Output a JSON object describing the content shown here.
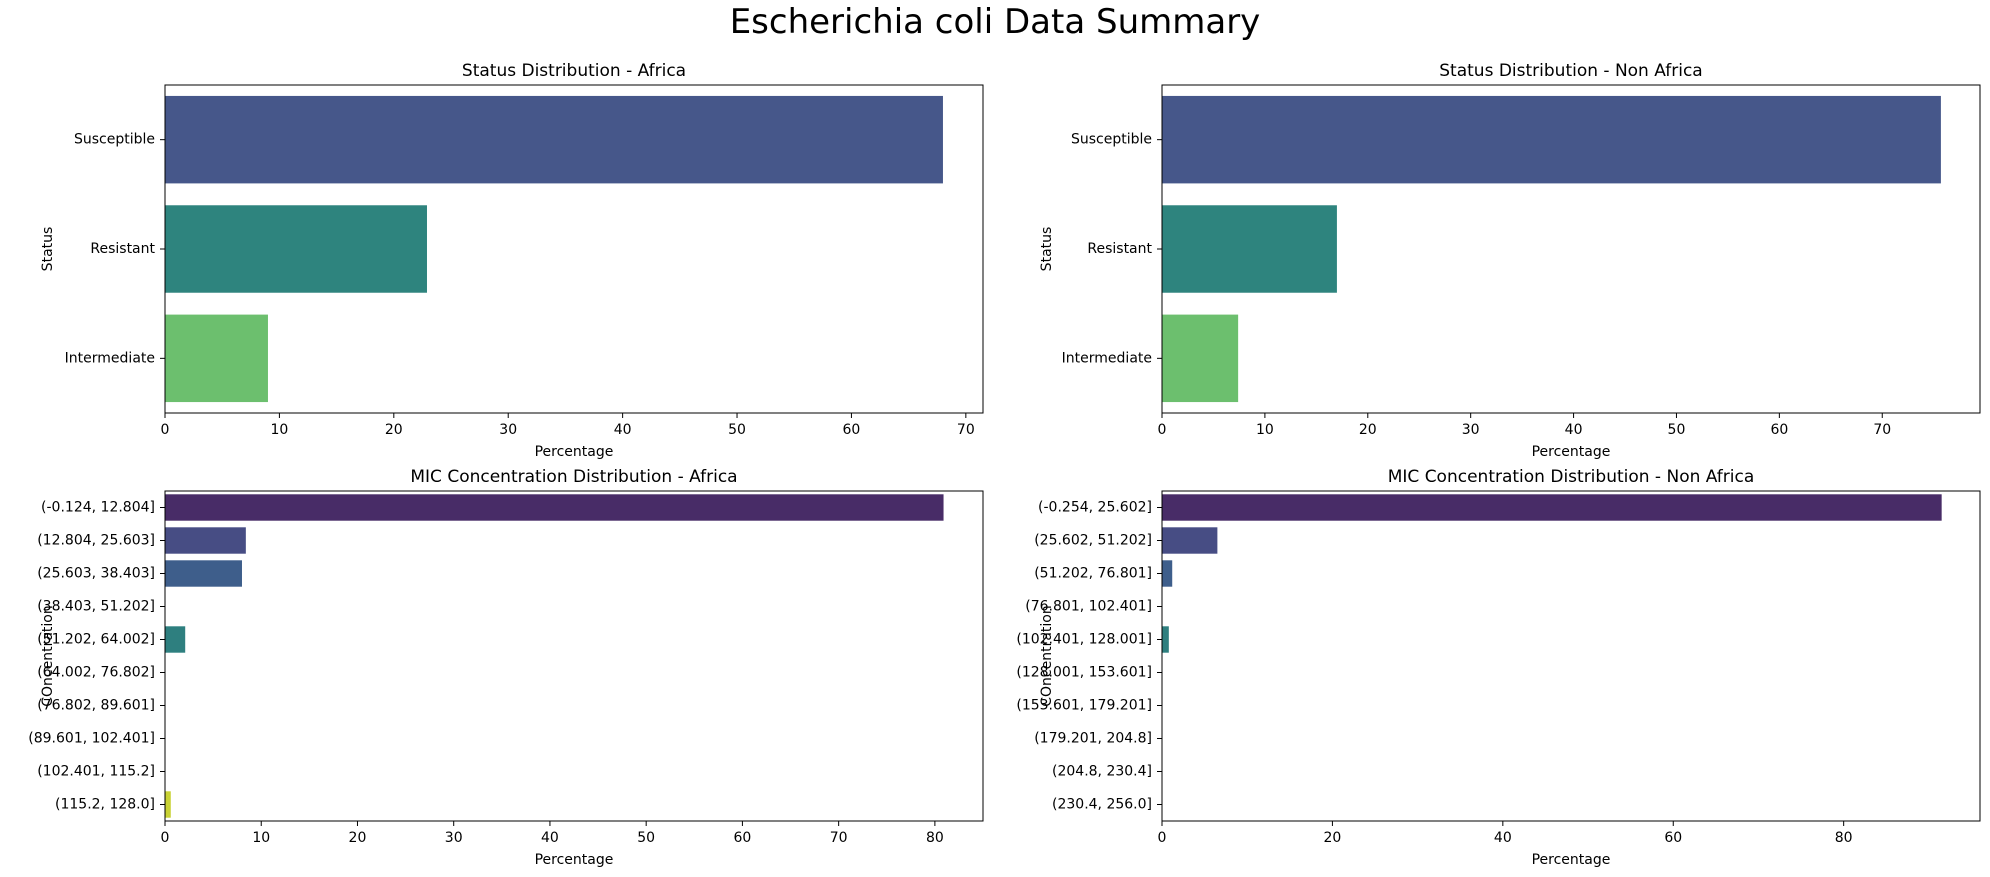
{
  "figure": {
    "suptitle": "Escherichia coli Data Summary"
  },
  "chart_data": [
    {
      "type": "bar",
      "orientation": "horizontal",
      "title": "Status Distribution - Africa",
      "xlabel": "Percentage",
      "ylabel": "Status",
      "categories": [
        "Susceptible",
        "Resistant",
        "Intermediate"
      ],
      "values": [
        68.0,
        22.9,
        9.0
      ],
      "colors": [
        "#46578a",
        "#2e847e",
        "#6cbf6e"
      ],
      "xlim": [
        0,
        71.5
      ],
      "xticks": [
        0,
        10,
        20,
        30,
        40,
        50,
        60,
        70
      ],
      "grid": false
    },
    {
      "type": "bar",
      "orientation": "horizontal",
      "title": "Status Distribution - Non Africa",
      "xlabel": "Percentage",
      "ylabel": "Status",
      "categories": [
        "Susceptible",
        "Resistant",
        "Intermediate"
      ],
      "values": [
        75.7,
        17.0,
        7.4
      ],
      "colors": [
        "#46578a",
        "#2e847e",
        "#6cbf6e"
      ],
      "xlim": [
        0,
        79.5
      ],
      "xticks": [
        0,
        10,
        20,
        30,
        40,
        50,
        60,
        70
      ],
      "grid": false
    },
    {
      "type": "bar",
      "orientation": "horizontal",
      "title": "MIC Concentration Distribution - Africa",
      "xlabel": "Percentage",
      "ylabel": "COncentration",
      "categories": [
        "(-0.124, 12.804]",
        "(12.804, 25.603]",
        "(25.603, 38.403]",
        "(38.403, 51.202]",
        "(51.202, 64.002]",
        "(64.002, 76.802]",
        "(76.802, 89.601]",
        "(89.601, 102.401]",
        "(102.401, 115.2]",
        "(115.2, 128.0]"
      ],
      "values": [
        80.9,
        8.4,
        8.0,
        0,
        2.1,
        0,
        0,
        0,
        0,
        0.6
      ],
      "colors": [
        "#482c67",
        "#474d84",
        "#3e5e8b",
        "#37728c",
        "#2e7f7f",
        "#26928b",
        "#3aa974",
        "#66bd5a",
        "#a4cd3b",
        "#c9d234"
      ],
      "xlim": [
        0,
        85
      ],
      "xticks": [
        0,
        10,
        20,
        30,
        40,
        50,
        60,
        70,
        80
      ],
      "grid": false
    },
    {
      "type": "bar",
      "orientation": "horizontal",
      "title": "MIC Concentration Distribution - Non Africa",
      "xlabel": "Percentage",
      "ylabel": "COncentration",
      "categories": [
        "(-0.254, 25.602]",
        "(25.602, 51.202]",
        "(51.202, 76.801]",
        "(76.801, 102.401]",
        "(102.401, 128.001]",
        "(128.001, 153.601]",
        "(153.601, 179.201]",
        "(179.201, 204.8]",
        "(204.8, 230.4]",
        "(230.4, 256.0]"
      ],
      "values": [
        91.5,
        6.5,
        1.2,
        0,
        0.8,
        0,
        0,
        0,
        0,
        0
      ],
      "colors": [
        "#482c67",
        "#474d84",
        "#3e5e8b",
        "#37728c",
        "#2e7f7f",
        "#26928b",
        "#3aa974",
        "#66bd5a",
        "#a4cd3b",
        "#c9d234"
      ],
      "xlim": [
        0,
        96
      ],
      "xticks": [
        0,
        20,
        40,
        60,
        80
      ],
      "grid": false
    }
  ]
}
